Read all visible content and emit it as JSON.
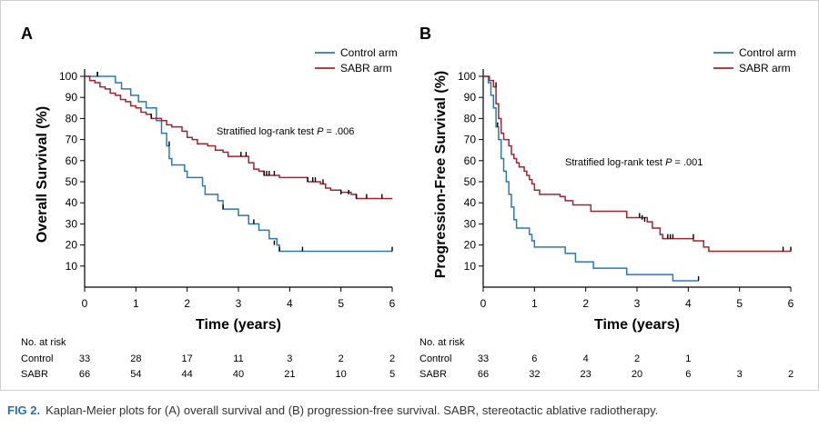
{
  "colors": {
    "control": "#2b78b8",
    "sabr": "#a3242e"
  },
  "at_risk_header": "No. at risk",
  "caption": {
    "label": "FIG 2.",
    "text": "Kaplan-Meier plots for (A) overall survival and (B) progression-free survival. SABR, stereotactic ablative radiotherapy."
  },
  "chart_data": [
    {
      "type": "line",
      "panel": "A",
      "title": "",
      "xlabel": "Time (years)",
      "ylabel": "Overall Survival (%)",
      "xlim": [
        0,
        6
      ],
      "ylim": [
        0,
        100
      ],
      "xticks": [
        0,
        1,
        2,
        3,
        4,
        5,
        6
      ],
      "yticks": [
        10,
        20,
        30,
        40,
        50,
        60,
        70,
        80,
        90,
        100
      ],
      "legend": {
        "placement": "top-right",
        "entries": [
          "Control arm",
          "SABR arm"
        ]
      },
      "annotation": {
        "text": "Stratified log-rank test ",
        "p_label": "P",
        "p_value": " = .006"
      },
      "series": [
        {
          "name": "Control arm",
          "step": [
            [
              0,
              100
            ],
            [
              0.55,
              100
            ],
            [
              0.6,
              97
            ],
            [
              0.72,
              94
            ],
            [
              0.9,
              91
            ],
            [
              1.05,
              88
            ],
            [
              1.2,
              85
            ],
            [
              1.4,
              79
            ],
            [
              1.5,
              73
            ],
            [
              1.6,
              67
            ],
            [
              1.65,
              61
            ],
            [
              1.7,
              58
            ],
            [
              1.95,
              55
            ],
            [
              2.0,
              52
            ],
            [
              2.3,
              48
            ],
            [
              2.35,
              44
            ],
            [
              2.6,
              41
            ],
            [
              2.7,
              37
            ],
            [
              3.0,
              34
            ],
            [
              3.2,
              30
            ],
            [
              3.4,
              27
            ],
            [
              3.6,
              23
            ],
            [
              3.75,
              20
            ],
            [
              3.8,
              17
            ],
            [
              6,
              17
            ]
          ],
          "censor": [
            [
              0.25,
              100
            ],
            [
              1.65,
              67
            ],
            [
              2.7,
              37
            ],
            [
              3.3,
              30
            ],
            [
              3.7,
              20
            ],
            [
              3.8,
              17
            ],
            [
              4.25,
              17
            ],
            [
              6.0,
              17
            ]
          ]
        },
        {
          "name": "SABR arm",
          "step": [
            [
              0,
              100
            ],
            [
              0.1,
              98
            ],
            [
              0.2,
              97
            ],
            [
              0.3,
              95
            ],
            [
              0.4,
              94
            ],
            [
              0.5,
              92
            ],
            [
              0.6,
              91
            ],
            [
              0.7,
              89
            ],
            [
              0.8,
              88
            ],
            [
              0.9,
              86
            ],
            [
              1.0,
              85
            ],
            [
              1.1,
              83
            ],
            [
              1.2,
              82
            ],
            [
              1.3,
              80
            ],
            [
              1.5,
              79
            ],
            [
              1.6,
              77
            ],
            [
              1.7,
              76
            ],
            [
              1.9,
              74
            ],
            [
              2.0,
              71
            ],
            [
              2.1,
              70
            ],
            [
              2.2,
              68
            ],
            [
              2.4,
              67
            ],
            [
              2.55,
              65
            ],
            [
              2.7,
              64
            ],
            [
              2.8,
              62
            ],
            [
              3.15,
              62
            ],
            [
              3.2,
              59
            ],
            [
              3.3,
              56
            ],
            [
              3.4,
              55
            ],
            [
              3.5,
              53
            ],
            [
              3.7,
              53
            ],
            [
              3.8,
              52
            ],
            [
              4.3,
              52
            ],
            [
              4.35,
              50
            ],
            [
              4.6,
              49
            ],
            [
              4.7,
              47
            ],
            [
              4.8,
              46
            ],
            [
              5.0,
              45
            ],
            [
              5.2,
              44
            ],
            [
              5.3,
              42
            ],
            [
              6,
              42
            ]
          ],
          "censor": [
            [
              0.25,
              100
            ],
            [
              1.3,
              80
            ],
            [
              3.05,
              62
            ],
            [
              3.15,
              62
            ],
            [
              3.5,
              53
            ],
            [
              3.55,
              53
            ],
            [
              3.6,
              53
            ],
            [
              3.7,
              53
            ],
            [
              4.35,
              50
            ],
            [
              4.45,
              50
            ],
            [
              4.5,
              50
            ],
            [
              4.65,
              49
            ],
            [
              5.0,
              44
            ],
            [
              5.15,
              44
            ],
            [
              5.3,
              42
            ],
            [
              5.5,
              42
            ],
            [
              5.8,
              42
            ]
          ]
        }
      ],
      "at_risk": {
        "times": [
          0,
          1,
          2,
          3,
          4,
          5,
          6
        ],
        "rows": [
          {
            "label": "Control",
            "values": [
              33,
              28,
              17,
              11,
              3,
              2,
              2
            ]
          },
          {
            "label": "SABR",
            "values": [
              66,
              54,
              44,
              40,
              21,
              10,
              5
            ]
          }
        ]
      }
    },
    {
      "type": "line",
      "panel": "B",
      "title": "",
      "xlabel": "Time (years)",
      "ylabel": "Progression-Free Survival (%)",
      "xlim": [
        0,
        6
      ],
      "ylim": [
        0,
        100
      ],
      "xticks": [
        0,
        1,
        2,
        3,
        4,
        5,
        6
      ],
      "yticks": [
        10,
        20,
        30,
        40,
        50,
        60,
        70,
        80,
        90,
        100
      ],
      "legend": {
        "placement": "top-right",
        "entries": [
          "Control arm",
          "SABR arm"
        ]
      },
      "annotation": {
        "text": "Stratified log-rank test ",
        "p_label": "P",
        "p_value": " = .001"
      },
      "series": [
        {
          "name": "Control arm",
          "step": [
            [
              0,
              100
            ],
            [
              0.1,
              97
            ],
            [
              0.15,
              91
            ],
            [
              0.2,
              85
            ],
            [
              0.25,
              76
            ],
            [
              0.3,
              70
            ],
            [
              0.35,
              61
            ],
            [
              0.4,
              55
            ],
            [
              0.45,
              50
            ],
            [
              0.5,
              44
            ],
            [
              0.55,
              38
            ],
            [
              0.6,
              32
            ],
            [
              0.65,
              28
            ],
            [
              0.9,
              25
            ],
            [
              0.95,
              22
            ],
            [
              1.0,
              19
            ],
            [
              1.6,
              16
            ],
            [
              1.8,
              12
            ],
            [
              2.15,
              9
            ],
            [
              2.8,
              6
            ],
            [
              3.7,
              3
            ],
            [
              4.2,
              3
            ]
          ],
          "censor": [
            [
              0.28,
              76
            ],
            [
              4.2,
              3
            ]
          ]
        },
        {
          "name": "SABR arm",
          "step": [
            [
              0,
              100
            ],
            [
              0.12,
              98
            ],
            [
              0.2,
              95
            ],
            [
              0.25,
              87
            ],
            [
              0.3,
              80
            ],
            [
              0.35,
              73
            ],
            [
              0.4,
              70
            ],
            [
              0.5,
              67
            ],
            [
              0.55,
              63
            ],
            [
              0.6,
              61
            ],
            [
              0.65,
              59
            ],
            [
              0.7,
              57
            ],
            [
              0.8,
              55
            ],
            [
              0.85,
              53
            ],
            [
              0.9,
              51
            ],
            [
              0.95,
              49
            ],
            [
              1.0,
              46
            ],
            [
              1.1,
              44
            ],
            [
              1.5,
              43
            ],
            [
              1.6,
              41
            ],
            [
              1.75,
              39
            ],
            [
              2.1,
              36
            ],
            [
              2.8,
              33
            ],
            [
              3.2,
              31
            ],
            [
              3.3,
              28
            ],
            [
              3.45,
              25
            ],
            [
              3.5,
              23
            ],
            [
              4.1,
              22
            ],
            [
              4.3,
              19
            ],
            [
              4.4,
              17
            ],
            [
              6,
              17
            ]
          ],
          "censor": [
            [
              0.25,
              95
            ],
            [
              3.05,
              33
            ],
            [
              3.1,
              32
            ],
            [
              3.15,
              31
            ],
            [
              3.6,
              23
            ],
            [
              3.65,
              23
            ],
            [
              3.7,
              23
            ],
            [
              4.1,
              23
            ],
            [
              5.85,
              17
            ],
            [
              6.0,
              17
            ]
          ]
        }
      ],
      "at_risk": {
        "times": [
          0,
          1,
          2,
          3,
          4,
          5,
          6
        ],
        "rows": [
          {
            "label": "Control",
            "values": [
              33,
              6,
              4,
              2,
              1
            ]
          },
          {
            "label": "SABR",
            "values": [
              66,
              32,
              23,
              20,
              6,
              3,
              2
            ]
          }
        ]
      }
    }
  ]
}
